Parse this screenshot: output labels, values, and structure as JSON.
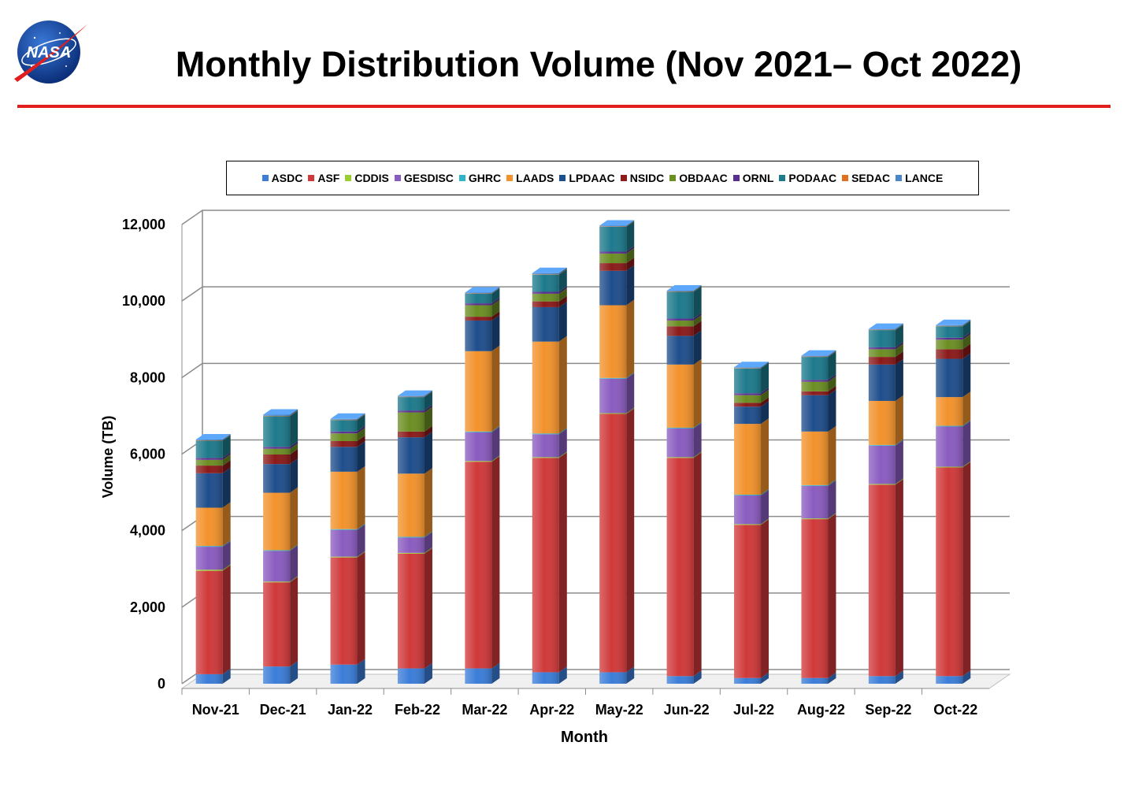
{
  "header": {
    "title": "Monthly Distribution Volume (Nov 2021– Oct 2022)",
    "logo_text": "NASA"
  },
  "colors": {
    "ASDC": "#3b7dd8",
    "ASF": "#d0393a",
    "CDDIS": "#9acd32",
    "GESDISC": "#8a5cc0",
    "GHRC": "#2fb5c8",
    "LAADS": "#f2922c",
    "LPDAAC": "#1f4e8c",
    "NSIDC": "#8b1a1a",
    "OBDAAC": "#6b8e23",
    "ORNL": "#5b2d90",
    "PODAAC": "#1d7a8c",
    "SEDAC": "#e0701e",
    "LANCE": "#4a86c8",
    "title_rule": "#e01e1e"
  },
  "chart_data": {
    "type": "bar",
    "stacked": true,
    "xlabel": "Month",
    "ylabel": "Volume (TB)",
    "ylim": [
      0,
      12000
    ],
    "yticks": [
      "0",
      "2,000",
      "4,000",
      "6,000",
      "8,000",
      "10,000",
      "12,000"
    ],
    "ytick_values": [
      0,
      2000,
      4000,
      6000,
      8000,
      10000,
      12000
    ],
    "grid": true,
    "legend_position": "top",
    "categories": [
      "Nov-21",
      "Dec-21",
      "Jan-22",
      "Feb-22",
      "Mar-22",
      "Apr-22",
      "May-22",
      "Jun-22",
      "Jul-22",
      "Aug-22",
      "Sep-22",
      "Oct-22"
    ],
    "series": [
      {
        "name": "ASDC",
        "values": [
          250,
          450,
          500,
          400,
          400,
          300,
          300,
          200,
          150,
          150,
          200,
          200
        ]
      },
      {
        "name": "ASF",
        "values": [
          2700,
          2200,
          2800,
          3000,
          5400,
          5600,
          6750,
          5700,
          4000,
          4150,
          5000,
          5450
        ]
      },
      {
        "name": "CDDIS",
        "values": [
          30,
          20,
          20,
          20,
          20,
          20,
          20,
          20,
          20,
          20,
          20,
          20
        ]
      },
      {
        "name": "GESDISC",
        "values": [
          600,
          800,
          700,
          400,
          750,
          600,
          900,
          750,
          750,
          850,
          1000,
          1050
        ]
      },
      {
        "name": "GHRC",
        "values": [
          20,
          20,
          20,
          20,
          20,
          20,
          20,
          20,
          20,
          20,
          20,
          20
        ]
      },
      {
        "name": "LAADS",
        "values": [
          1000,
          1500,
          1500,
          1650,
          2100,
          2400,
          1900,
          1650,
          1850,
          1400,
          1150,
          750
        ]
      },
      {
        "name": "LPDAAC",
        "values": [
          900,
          750,
          650,
          950,
          800,
          900,
          900,
          750,
          450,
          950,
          950,
          1000
        ]
      },
      {
        "name": "NSIDC",
        "values": [
          200,
          250,
          150,
          150,
          100,
          150,
          200,
          250,
          100,
          100,
          200,
          250
        ]
      },
      {
        "name": "OBDAAC",
        "values": [
          150,
          150,
          200,
          500,
          300,
          200,
          250,
          150,
          200,
          250,
          200,
          250
        ]
      },
      {
        "name": "ORNL",
        "values": [
          50,
          50,
          50,
          50,
          50,
          50,
          50,
          50,
          50,
          50,
          50,
          50
        ]
      },
      {
        "name": "PODAAC",
        "values": [
          450,
          800,
          300,
          350,
          250,
          450,
          650,
          700,
          650,
          600,
          450,
          300
        ]
      },
      {
        "name": "SEDAC",
        "values": [
          10,
          10,
          10,
          10,
          10,
          10,
          10,
          10,
          10,
          10,
          10,
          10
        ]
      },
      {
        "name": "LANCE",
        "values": [
          20,
          30,
          20,
          20,
          20,
          30,
          20,
          20,
          20,
          20,
          20,
          20
        ]
      }
    ]
  }
}
